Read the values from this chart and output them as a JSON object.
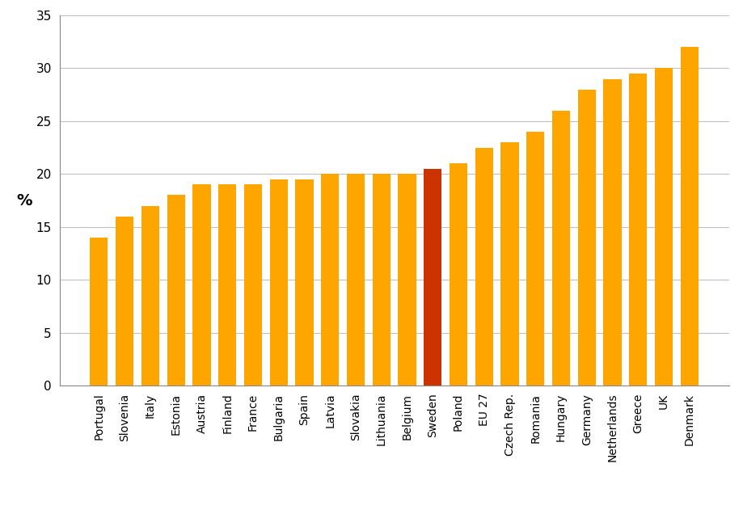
{
  "categories": [
    "Portugal",
    "Slovenia",
    "Italy",
    "Estonia",
    "Austria",
    "Finland",
    "France",
    "Bulgaria",
    "Spain",
    "Latvia",
    "Slovakia",
    "Lithuania",
    "Belgium",
    "Sweden",
    "Poland",
    "EU 27",
    "Czech Rep.",
    "Romania",
    "Hungary",
    "Germany",
    "Netherlands",
    "Greece",
    "UK",
    "Denmark"
  ],
  "values": [
    14.0,
    16.0,
    17.0,
    18.0,
    19.0,
    19.0,
    19.0,
    19.5,
    19.5,
    20.0,
    20.0,
    20.0,
    20.0,
    20.5,
    21.0,
    22.5,
    23.0,
    24.0,
    26.0,
    28.0,
    29.0,
    29.5,
    30.0,
    32.0
  ],
  "bar_colors": [
    "#FFA500",
    "#FFA500",
    "#FFA500",
    "#FFA500",
    "#FFA500",
    "#FFA500",
    "#FFA500",
    "#FFA500",
    "#FFA500",
    "#FFA500",
    "#FFA500",
    "#FFA500",
    "#FFA500",
    "#CC3300",
    "#FFA500",
    "#FFA500",
    "#FFA500",
    "#FFA500",
    "#FFA500",
    "#FFA500",
    "#FFA500",
    "#FFA500",
    "#FFA500",
    "#FFA500"
  ],
  "ylabel": "%",
  "ylim": [
    0,
    35
  ],
  "yticks": [
    0,
    5,
    10,
    15,
    20,
    25,
    30,
    35
  ],
  "background_color": "#ffffff",
  "grid_color": "#c0c0c0"
}
